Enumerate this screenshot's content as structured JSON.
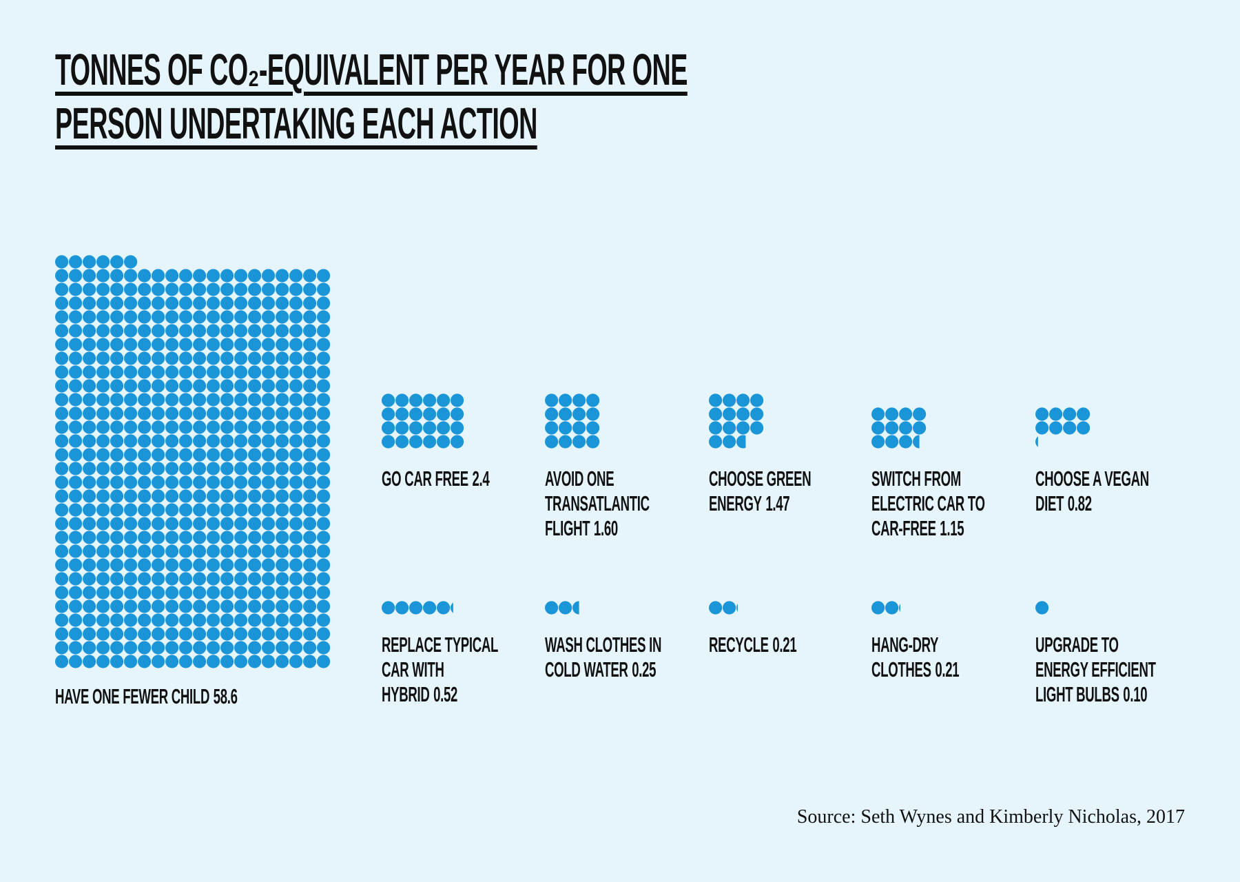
{
  "chart_data": {
    "type": "waffle",
    "title": "TONNES OF CO₂-EQUIVALENT PER YEAR FOR ONE PERSON UNDERTAKING EACH ACTION",
    "categories": [
      "HAVE ONE FEWER CHILD",
      "GO CAR FREE",
      "AVOID ONE TRANSATLANTIC FLIGHT",
      "CHOOSE GREEN ENERGY",
      "SWITCH FROM ELECTRIC CAR TO CAR-FREE",
      "CHOOSE A VEGAN DIET",
      "REPLACE TYPICAL CAR WITH HYBRID",
      "WASH CLOTHES IN COLD WATER",
      "RECYCLE",
      "HANG-DRY CLOTHES",
      "UPGRADE TO ENERGY EFFICIENT LIGHT BULBS"
    ],
    "values": [
      58.6,
      2.4,
      1.6,
      1.47,
      1.15,
      0.82,
      0.52,
      0.25,
      0.21,
      0.21,
      0.1
    ],
    "value_labels": [
      "58.6",
      "2.4",
      "1.60",
      "1.47",
      "1.15",
      "0.82",
      "0.52",
      "0.25",
      "0.21",
      "0.21",
      "0.10"
    ],
    "color": "#1a96d8",
    "source": "Source: Seth Wynes and Kimberly Nicholas, 2017"
  }
}
